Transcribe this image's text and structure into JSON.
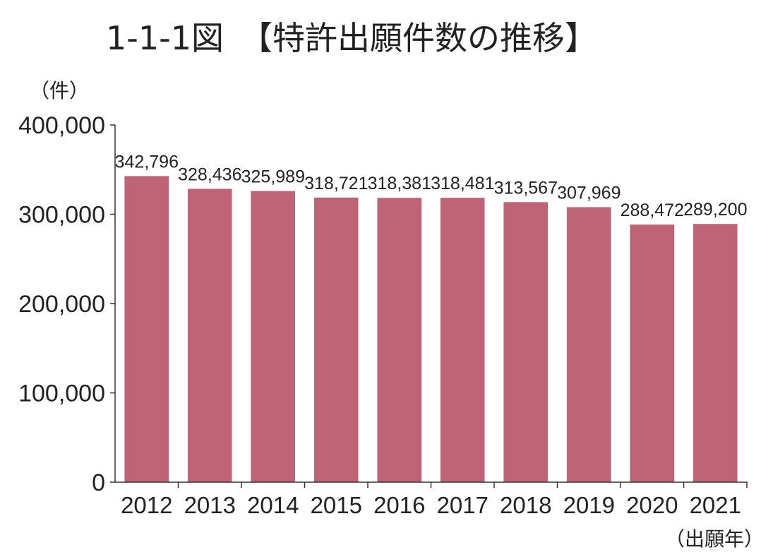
{
  "chart_data": {
    "type": "bar",
    "title": "1-1-1図　【特許出願件数の推移】",
    "ylabel": "（件）",
    "xlabel": "（出願年）",
    "categories": [
      "2012",
      "2013",
      "2014",
      "2015",
      "2016",
      "2017",
      "2018",
      "2019",
      "2020",
      "2021"
    ],
    "values": [
      342796,
      328436,
      325989,
      318721,
      318381,
      318481,
      313567,
      307969,
      288472,
      289200
    ],
    "value_labels": [
      "342,796",
      "328,436",
      "325,989",
      "318,721",
      "318,381",
      "318,481",
      "313,567",
      "307,969",
      "288,472",
      "289,200"
    ],
    "yticks": [
      0,
      100000,
      200000,
      300000,
      400000
    ],
    "ytick_labels": [
      "0",
      "100,000",
      "200,000",
      "300,000",
      "400,000"
    ],
    "ylim": [
      0,
      400000
    ],
    "grid": false,
    "legend": "none",
    "bar_color": "#bf6377"
  }
}
